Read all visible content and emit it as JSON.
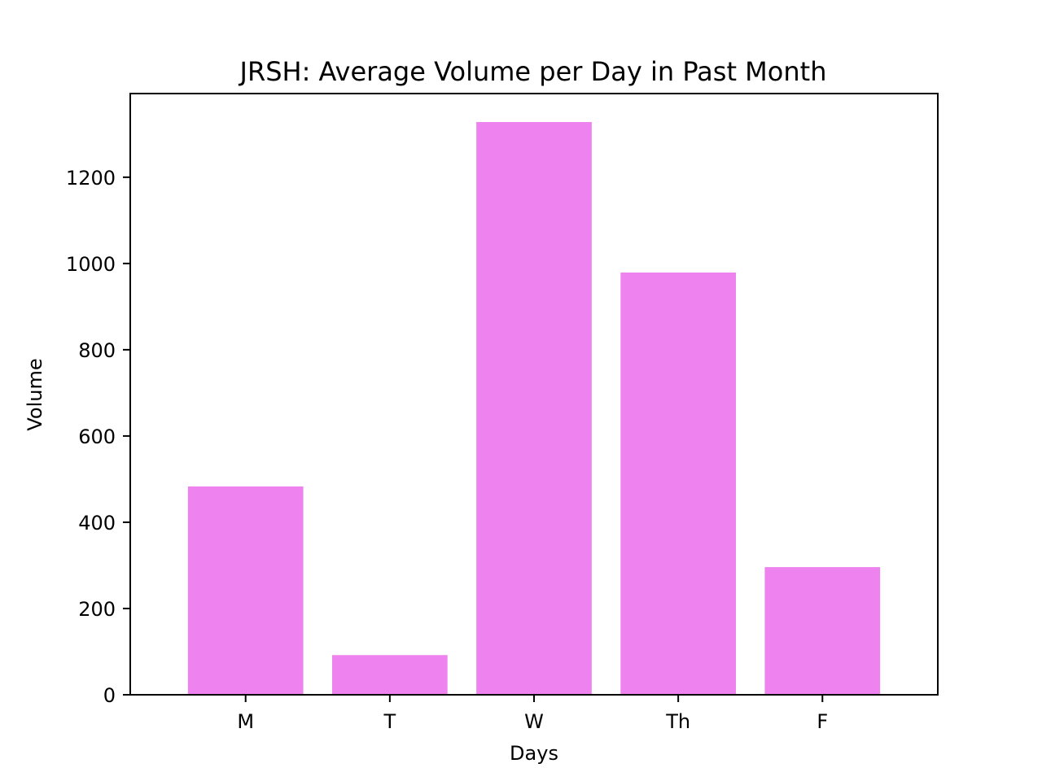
{
  "chart_data": {
    "type": "bar",
    "title": "JRSH: Average Volume per Day in Past Month",
    "xlabel": "Days",
    "ylabel": "Volume",
    "categories": [
      "M",
      "T",
      "W",
      "Th",
      "F"
    ],
    "values": [
      483,
      92,
      1328,
      979,
      296
    ],
    "ylim": [
      0,
      1394
    ],
    "yticks": [
      0,
      200,
      400,
      600,
      800,
      1000,
      1200
    ],
    "bar_color": "#ee82ee",
    "grid": false,
    "legend": "none"
  }
}
